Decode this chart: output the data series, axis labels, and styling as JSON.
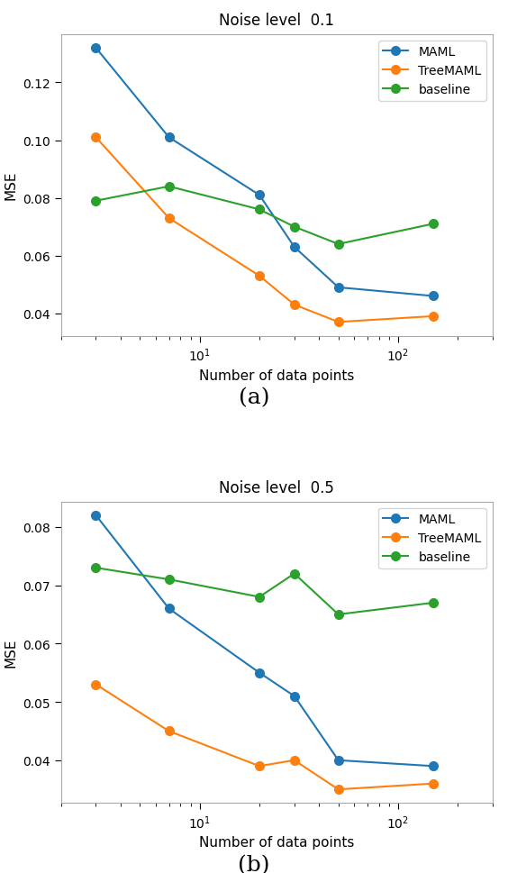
{
  "plot_a": {
    "title": "Noise level  0.1",
    "xlabel": "Number of data points",
    "ylabel": "MSE",
    "x": [
      3,
      7,
      20,
      30,
      50,
      150
    ],
    "maml": [
      0.132,
      0.101,
      0.081,
      0.063,
      0.049,
      0.046
    ],
    "treemaml": [
      0.101,
      0.073,
      0.053,
      0.043,
      0.037,
      0.039
    ],
    "baseline": [
      0.079,
      0.084,
      0.076,
      0.07,
      0.064,
      0.071
    ],
    "sublabel": "(a)"
  },
  "plot_b": {
    "title": "Noise level  0.5",
    "xlabel": "Number of data points",
    "ylabel": "MSE",
    "x": [
      3,
      7,
      20,
      30,
      50,
      150
    ],
    "maml": [
      0.082,
      0.066,
      0.055,
      0.051,
      0.04,
      0.039
    ],
    "treemaml": [
      0.053,
      0.045,
      0.039,
      0.04,
      0.035,
      0.036
    ],
    "baseline": [
      0.073,
      0.071,
      0.068,
      0.072,
      0.065,
      0.067
    ],
    "sublabel": "(b)"
  },
  "colors": {
    "maml": "#1f77b4",
    "treemaml": "#ff7f0e",
    "baseline": "#2ca02c"
  },
  "legend_labels": [
    "MAML",
    "TreeMAML",
    "baseline"
  ],
  "marker": "o",
  "linewidth": 1.5,
  "markersize": 7,
  "xlim": [
    2,
    300
  ],
  "figsize": [
    5.64,
    9.7
  ],
  "dpi": 100
}
